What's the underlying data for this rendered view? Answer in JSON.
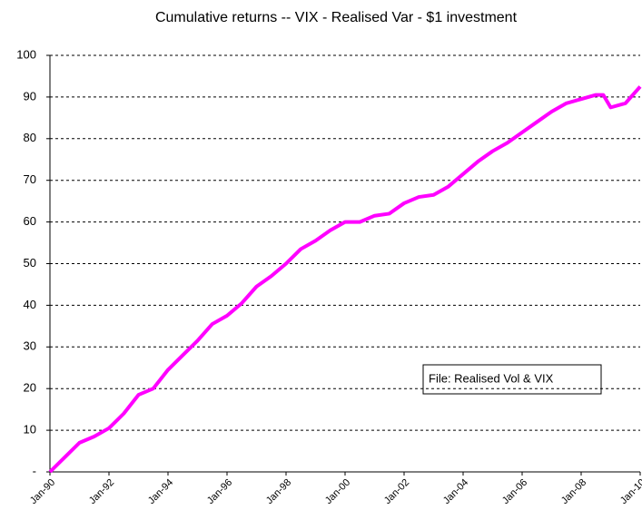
{
  "chart_data": {
    "type": "line",
    "title": "Cumulative returns -- VIX - Realised Var - $1 investment",
    "annotation": "File: Realised Vol & VIX",
    "x": [
      1990,
      1990.5,
      1991,
      1991.5,
      1992,
      1992.5,
      1993,
      1993.5,
      1994,
      1994.5,
      1995,
      1995.5,
      1996,
      1996.5,
      1997,
      1997.5,
      1998,
      1998.5,
      1999,
      1999.5,
      2000,
      2000.5,
      2001,
      2001.5,
      2002,
      2002.5,
      2003,
      2003.5,
      2004,
      2004.5,
      2005,
      2005.5,
      2006,
      2006.5,
      2007,
      2007.5,
      2008,
      2008.5,
      2008.75,
      2009,
      2009.5,
      2010
    ],
    "series": [
      {
        "color": "#ff00ff",
        "values": [
          0,
          3.5,
          7,
          8.5,
          10.5,
          14,
          18.5,
          20,
          24.5,
          28,
          31.5,
          35.5,
          37.5,
          40.5,
          44.5,
          47,
          50,
          53.5,
          55.5,
          58,
          60,
          60,
          61.5,
          62,
          64.5,
          66,
          66.5,
          68.5,
          71.5,
          74.5,
          77,
          79,
          81.5,
          84,
          86.5,
          88.5,
          89.5,
          90.5,
          90.5,
          87.5,
          88.5,
          92.5
        ]
      }
    ],
    "xlim": [
      1990,
      2010
    ],
    "xticks": [
      {
        "value": 1990,
        "label": "Jan-90"
      },
      {
        "value": 1992,
        "label": "Jan-92"
      },
      {
        "value": 1994,
        "label": "Jan-94"
      },
      {
        "value": 1996,
        "label": "Jan-96"
      },
      {
        "value": 1998,
        "label": "Jan-98"
      },
      {
        "value": 2000,
        "label": "Jan-00"
      },
      {
        "value": 2002,
        "label": "Jan-02"
      },
      {
        "value": 2004,
        "label": "Jan-04"
      },
      {
        "value": 2006,
        "label": "Jan-06"
      },
      {
        "value": 2008,
        "label": "Jan-08"
      },
      {
        "value": 2010,
        "label": "Jan-10"
      }
    ],
    "ylim": [
      0,
      100
    ],
    "yticks": [
      {
        "value": 0,
        "label": "-"
      },
      10,
      20,
      30,
      40,
      50,
      60,
      70,
      80,
      90,
      100
    ],
    "grid": true
  }
}
